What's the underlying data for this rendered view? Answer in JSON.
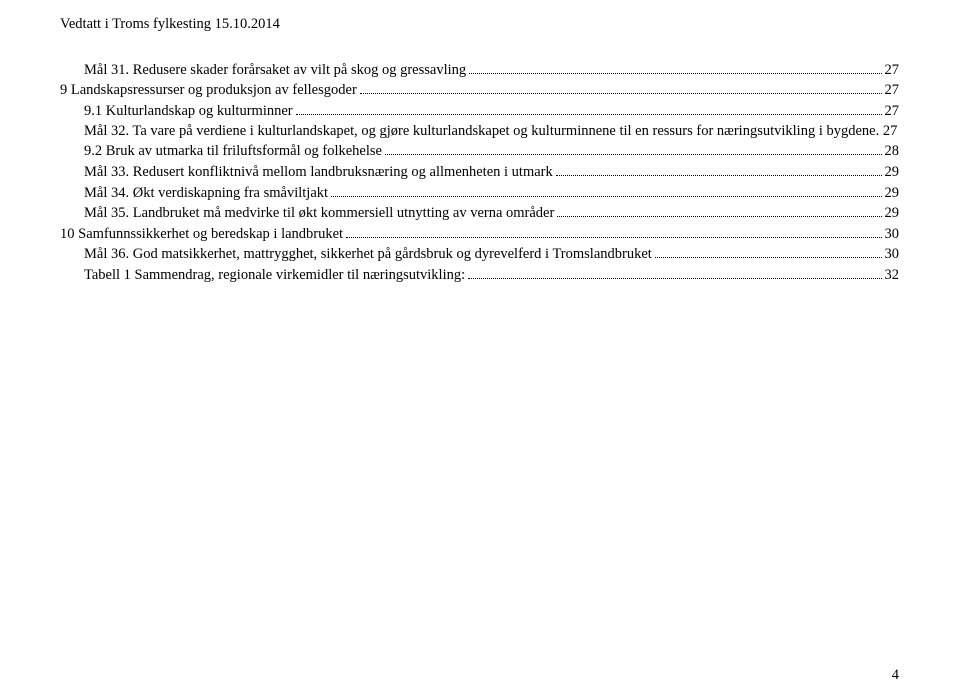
{
  "header": "Vedtatt i Troms fylkesting 15.10.2014",
  "toc": [
    {
      "label": "Mål 31. Redusere skader forårsaket av vilt på skog og gressavling",
      "page": "27",
      "indent": 0
    },
    {
      "label": "9 Landskapsressurser og produksjon av fellesgoder",
      "page": "27",
      "indent": 1
    },
    {
      "label": "9.1 Kulturlandskap og kulturminner",
      "page": "27",
      "indent": 0
    },
    {
      "label": "Mål 32. Ta vare på verdiene i kulturlandskapet, og gjøre kulturlandskapet og kulturminnene til en ressurs for næringsutvikling i bygdene",
      "page": ". 27",
      "indent": 0,
      "nodots": true
    },
    {
      "label": "9.2 Bruk av utmarka til friluftsformål og folkehelse",
      "page": "28",
      "indent": 0
    },
    {
      "label": "Mål 33. Redusert konfliktnivå mellom landbruksnæring og allmenheten i utmark",
      "page": "29",
      "indent": 0
    },
    {
      "label": "Mål 34. Økt verdiskapning fra småviltjakt",
      "page": "29",
      "indent": 0
    },
    {
      "label": "Mål 35. Landbruket må medvirke til økt kommersiell utnytting av verna områder",
      "page": "29",
      "indent": 0
    },
    {
      "label": "10 Samfunnssikkerhet og beredskap i landbruket",
      "page": "30",
      "indent": 1
    },
    {
      "label": "Mål 36. God matsikkerhet, mattrygghet, sikkerhet på gårdsbruk og dyrevelferd i Tromslandbruket",
      "page": "30",
      "indent": 0
    },
    {
      "label": "Tabell 1 Sammendrag, regionale virkemidler til næringsutvikling:",
      "page": "32",
      "indent": 0
    }
  ],
  "pageNumber": "4"
}
